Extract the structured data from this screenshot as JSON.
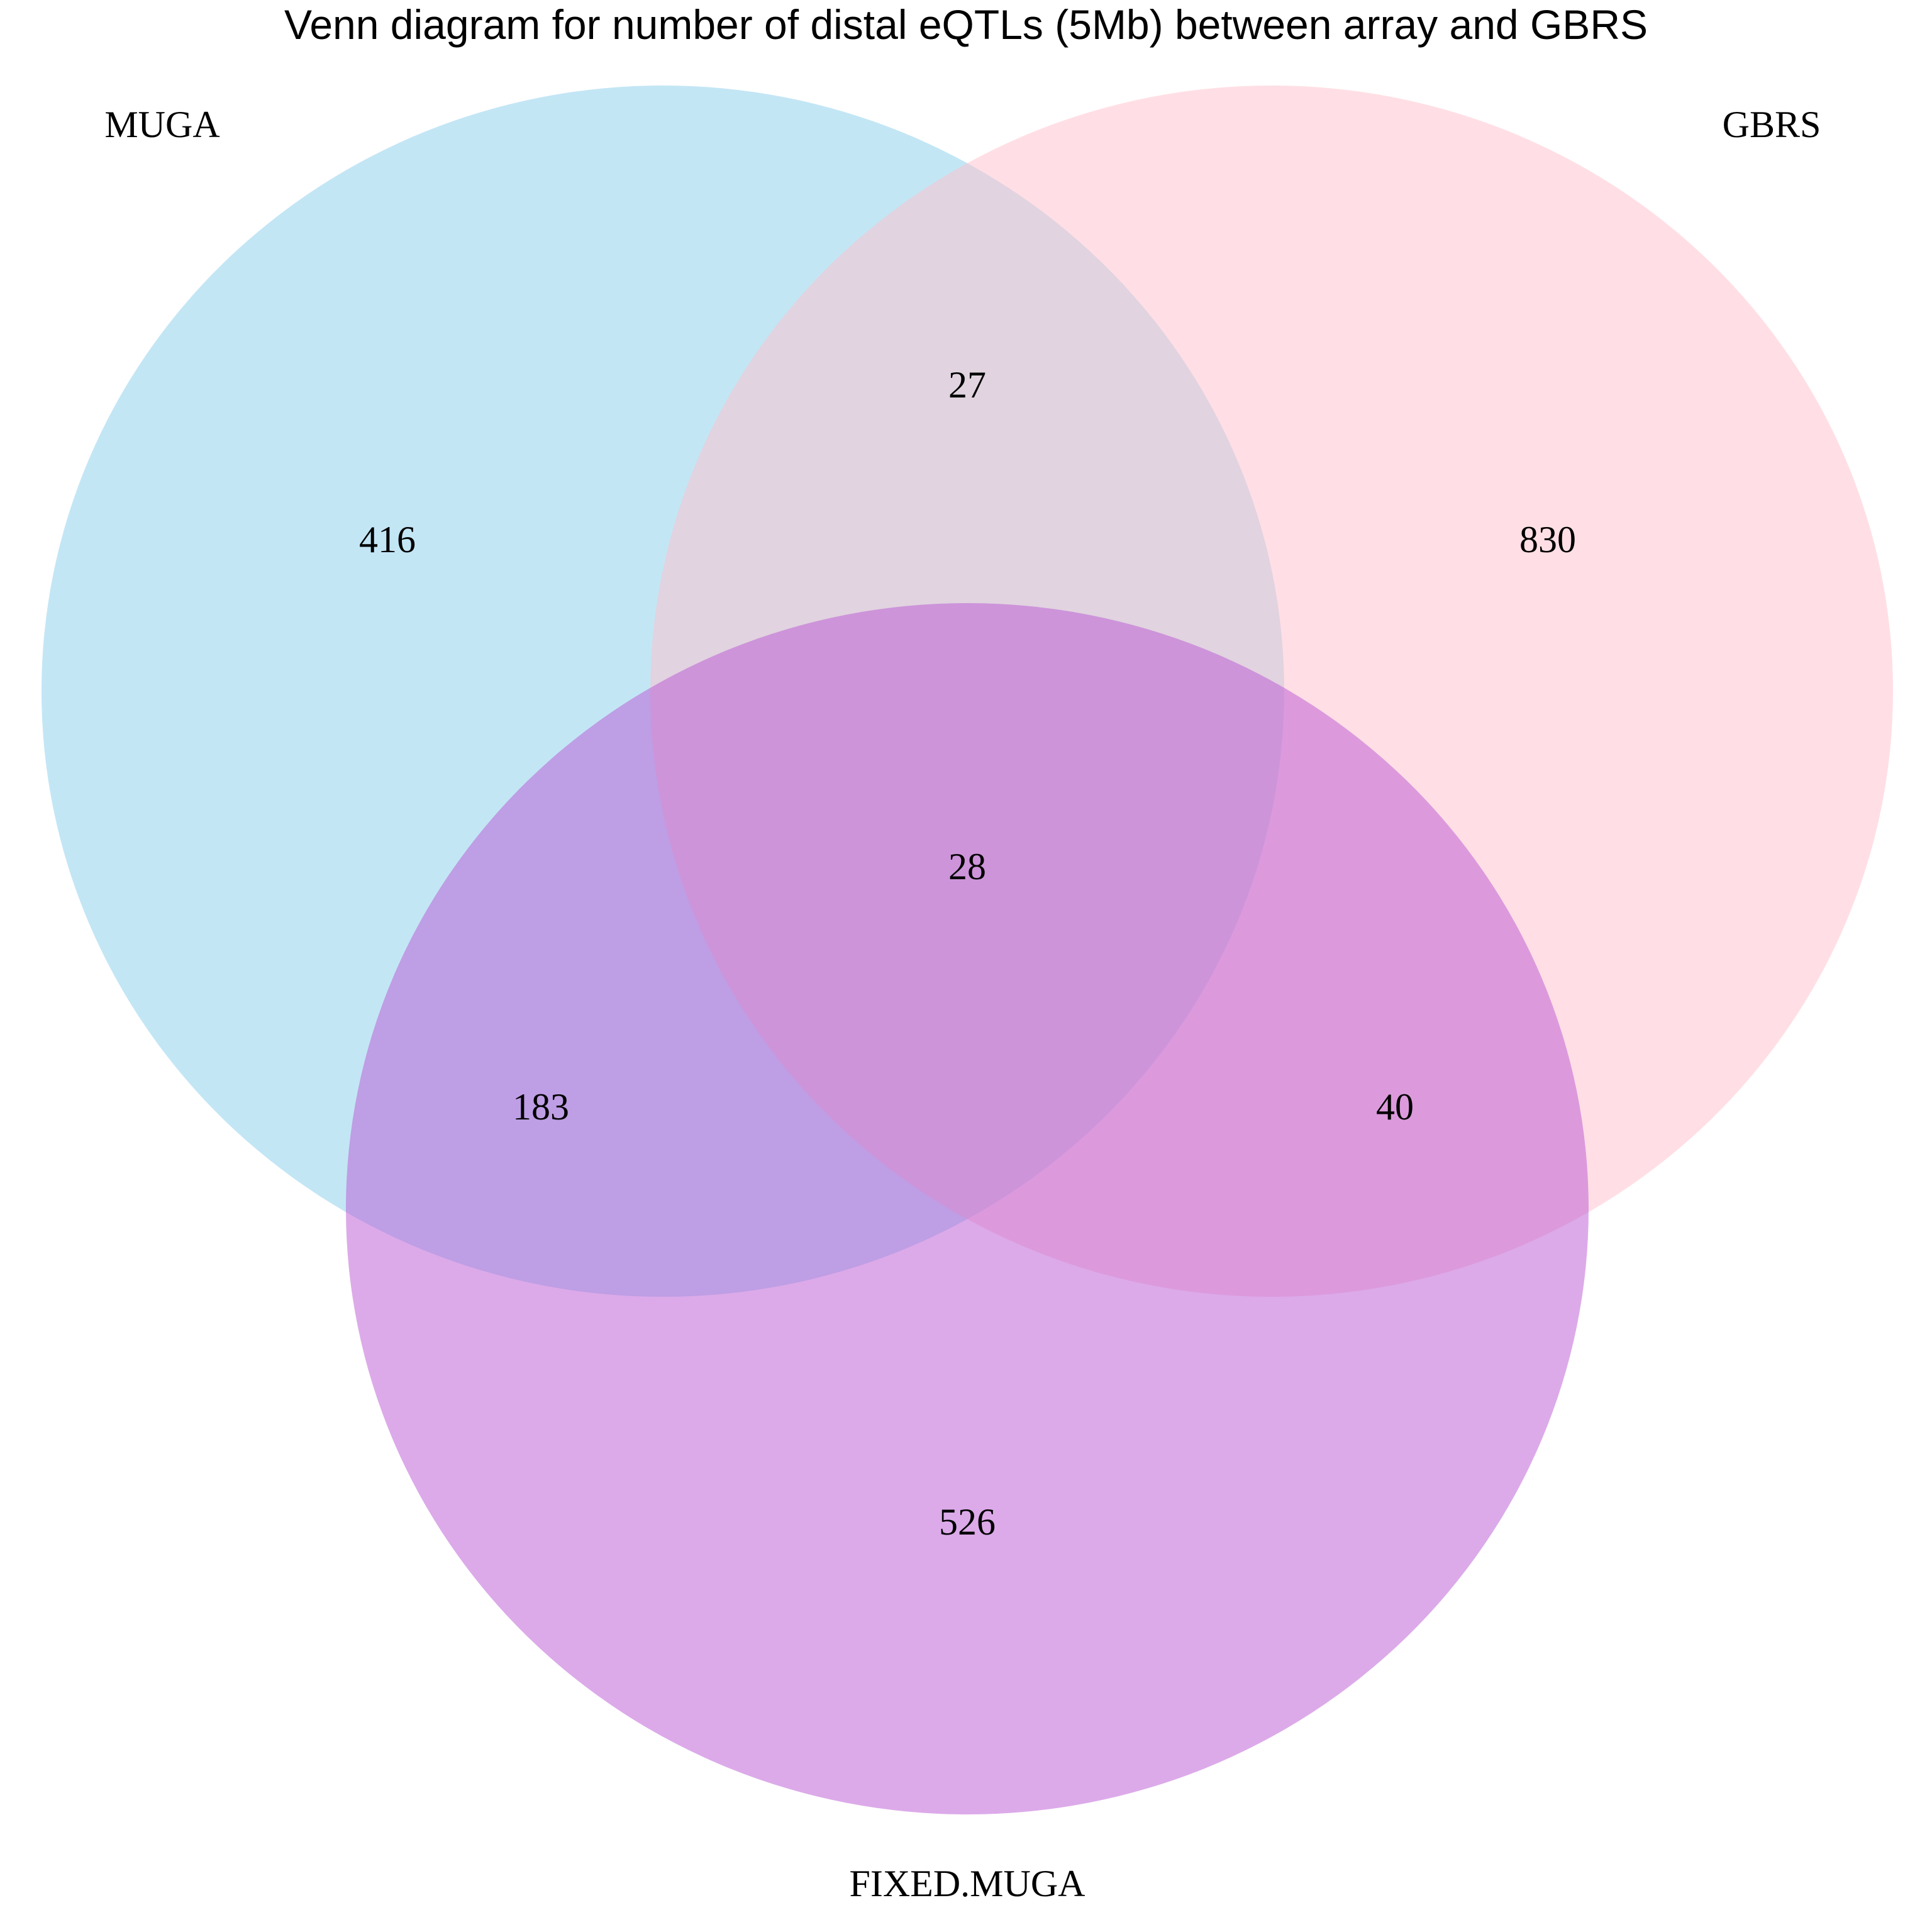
{
  "title": "Venn diagram for number of distal eQTLs (5Mb) between array and GBRS",
  "sets": [
    {
      "id": "muga",
      "label": "MUGA",
      "color": "#87CEEB"
    },
    {
      "id": "gbrs",
      "label": "GBRS",
      "color": "#FFC0CB"
    },
    {
      "id": "fixed",
      "label": "FIXED.MUGA",
      "color": "#BA55D3"
    }
  ],
  "opacity": 0.5,
  "regions": {
    "muga_only": "416",
    "gbrs_only": "830",
    "fixed_only": "526",
    "muga_gbrs": "27",
    "muga_fixed": "183",
    "gbrs_fixed": "40",
    "all_three": "28"
  }
}
